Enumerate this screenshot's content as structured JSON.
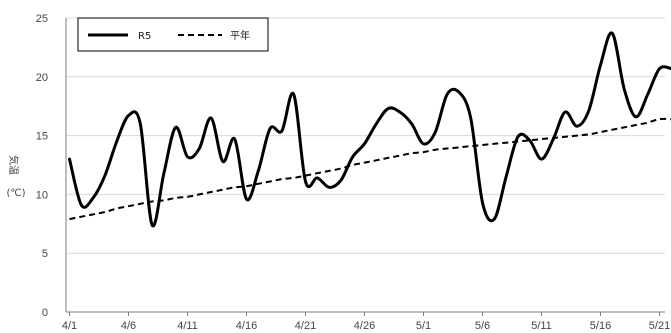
{
  "chart_data": {
    "type": "line",
    "title": "",
    "xlabel": "",
    "ylabel_top": "気温",
    "ylabel_unit": "(℃)",
    "ylim": [
      0,
      25
    ],
    "yticks": [
      0,
      5,
      10,
      15,
      20,
      25
    ],
    "xtick_labels": [
      "4/1",
      "4/6",
      "4/11",
      "4/16",
      "4/21",
      "4/26",
      "5/1",
      "5/6",
      "5/11",
      "5/16",
      "5/21"
    ],
    "grid": true,
    "legend_position": "top-left",
    "x": [
      "4/1",
      "4/2",
      "4/3",
      "4/4",
      "4/5",
      "4/6",
      "4/7",
      "4/8",
      "4/9",
      "4/10",
      "4/11",
      "4/12",
      "4/13",
      "4/14",
      "4/15",
      "4/16",
      "4/17",
      "4/18",
      "4/19",
      "4/20",
      "4/21",
      "4/22",
      "4/23",
      "4/24",
      "4/25",
      "4/26",
      "4/27",
      "4/28",
      "4/29",
      "4/30",
      "5/1",
      "5/2",
      "5/3",
      "5/4",
      "5/5",
      "5/6",
      "5/7",
      "5/8",
      "5/9",
      "5/10",
      "5/11",
      "5/12",
      "5/13",
      "5/14",
      "5/15",
      "5/16",
      "5/17",
      "5/18",
      "5/19",
      "5/20",
      "5/21",
      "5/22"
    ],
    "series": [
      {
        "name": "R5",
        "style": "solid",
        "color": "#000000",
        "values": [
          13.0,
          9.1,
          9.7,
          11.6,
          14.5,
          16.7,
          16.0,
          7.4,
          11.8,
          15.7,
          13.2,
          13.9,
          16.5,
          12.8,
          14.7,
          9.6,
          12.0,
          15.6,
          15.4,
          18.5,
          11.1,
          11.4,
          10.6,
          11.2,
          13.2,
          14.3,
          16.0,
          17.3,
          17.0,
          16.0,
          14.3,
          15.3,
          18.5,
          18.7,
          16.5,
          9.3,
          7.9,
          11.5,
          14.9,
          14.6,
          13.0,
          14.7,
          17.0,
          15.8,
          17.1,
          21.0,
          23.7,
          19.0,
          16.6,
          18.5,
          20.7,
          20.7
        ]
      },
      {
        "name": "平年",
        "style": "dashed",
        "color": "#000000",
        "values": [
          7.9,
          8.1,
          8.3,
          8.5,
          8.8,
          9.0,
          9.2,
          9.4,
          9.5,
          9.7,
          9.8,
          10.0,
          10.2,
          10.4,
          10.6,
          10.7,
          10.9,
          11.1,
          11.3,
          11.4,
          11.6,
          11.8,
          12.0,
          12.2,
          12.5,
          12.7,
          12.9,
          13.1,
          13.3,
          13.5,
          13.6,
          13.8,
          13.9,
          14.0,
          14.1,
          14.2,
          14.3,
          14.4,
          14.5,
          14.6,
          14.7,
          14.8,
          14.9,
          15.0,
          15.1,
          15.3,
          15.5,
          15.7,
          15.9,
          16.1,
          16.4,
          16.4
        ]
      }
    ]
  }
}
